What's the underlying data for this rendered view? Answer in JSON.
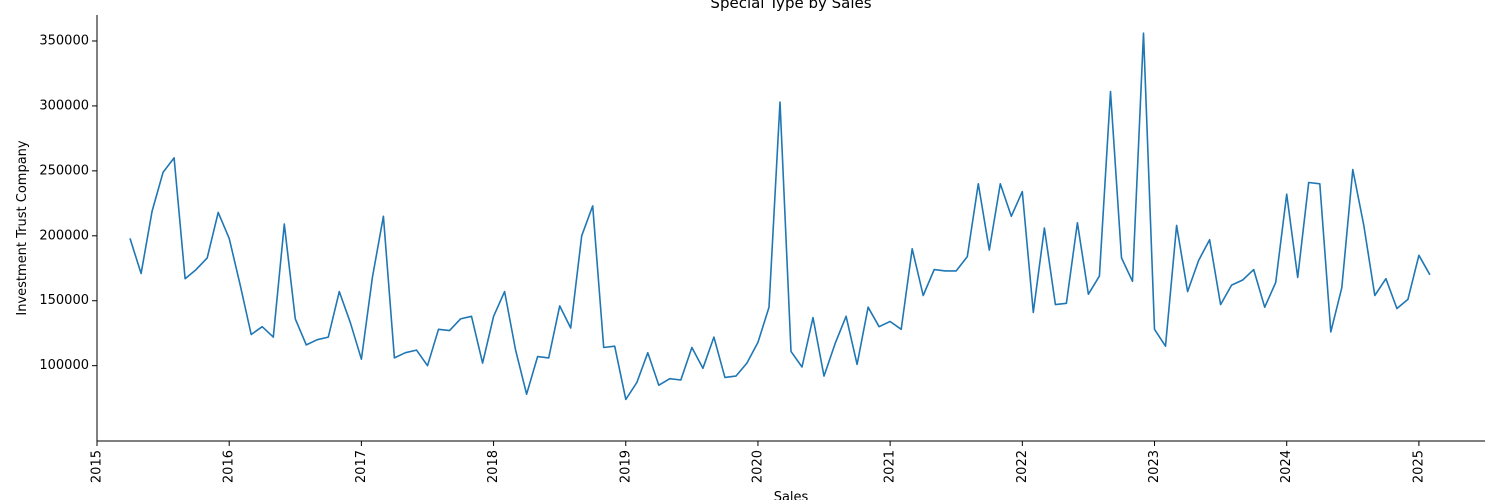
{
  "chart_data": {
    "type": "line",
    "title": "Special Type by Sales",
    "xlabel": "Sales",
    "ylabel": "Investment Trust Company",
    "x_ticks": [
      "2015",
      "2016",
      "2017",
      "2018",
      "2019",
      "2020",
      "2021",
      "2022",
      "2023",
      "2024",
      "2025"
    ],
    "y_ticks": [
      100000,
      150000,
      200000,
      250000,
      300000,
      350000
    ],
    "x_range": [
      "2015-01-01",
      "2025-07-01"
    ],
    "ylim": [
      42000,
      370000
    ],
    "grid": false,
    "legend": "none",
    "line_color": "#1f77b4",
    "series": [
      {
        "x": [
          "2015-04",
          "2015-05",
          "2015-06",
          "2015-07",
          "2015-08",
          "2015-09",
          "2015-10",
          "2015-11",
          "2015-12",
          "2016-01",
          "2016-02",
          "2016-03",
          "2016-04",
          "2016-05",
          "2016-06",
          "2016-07",
          "2016-08",
          "2016-09",
          "2016-10",
          "2016-11",
          "2016-12",
          "2017-01",
          "2017-02",
          "2017-03",
          "2017-04",
          "2017-05",
          "2017-06",
          "2017-07",
          "2017-08",
          "2017-09",
          "2017-10",
          "2017-11",
          "2017-12",
          "2018-01",
          "2018-02",
          "2018-03",
          "2018-04",
          "2018-05",
          "2018-06",
          "2018-07",
          "2018-08",
          "2018-09",
          "2018-10",
          "2018-11",
          "2018-12",
          "2019-01",
          "2019-02",
          "2019-03",
          "2019-04",
          "2019-05",
          "2019-06",
          "2019-07",
          "2019-08",
          "2019-09",
          "2019-10",
          "2019-11",
          "2019-12",
          "2020-01",
          "2020-02",
          "2020-03",
          "2020-04",
          "2020-05",
          "2020-06",
          "2020-07",
          "2020-08",
          "2020-09",
          "2020-10",
          "2020-11",
          "2020-12",
          "2021-01",
          "2021-02",
          "2021-03",
          "2021-04",
          "2021-05",
          "2021-06",
          "2021-07",
          "2021-08",
          "2021-09",
          "2021-10",
          "2021-11",
          "2021-12",
          "2022-01",
          "2022-02",
          "2022-03",
          "2022-04",
          "2022-05",
          "2022-06",
          "2022-07",
          "2022-08",
          "2022-09",
          "2022-10",
          "2022-11",
          "2022-12",
          "2023-01",
          "2023-02",
          "2023-03",
          "2023-04",
          "2023-05",
          "2023-06",
          "2023-07",
          "2023-08",
          "2023-09",
          "2023-10",
          "2023-11",
          "2023-12",
          "2024-01",
          "2024-02",
          "2024-03",
          "2024-04",
          "2024-05",
          "2024-06",
          "2024-07",
          "2024-08",
          "2024-09",
          "2024-10",
          "2024-11",
          "2024-12",
          "2025-01",
          "2025-02"
        ],
        "values": [
          198000,
          171000,
          219000,
          249000,
          260000,
          167000,
          174000,
          183000,
          218000,
          198000,
          162000,
          124000,
          130000,
          122000,
          209000,
          136000,
          116000,
          120000,
          122000,
          157000,
          133000,
          105000,
          168000,
          215000,
          106000,
          110000,
          112000,
          100000,
          128000,
          127000,
          136000,
          138000,
          102000,
          138000,
          157000,
          112000,
          78000,
          107000,
          106000,
          146000,
          129000,
          200000,
          223000,
          114000,
          115000,
          74000,
          87000,
          110000,
          85000,
          90000,
          89000,
          114000,
          98000,
          122000,
          91000,
          92000,
          102000,
          118000,
          145000,
          303000,
          111000,
          99000,
          137000,
          92000,
          117000,
          138000,
          101000,
          145000,
          130000,
          134000,
          128000,
          190000,
          154000,
          174000,
          173000,
          173000,
          184000,
          240000,
          189000,
          240000,
          215000,
          234000,
          141000,
          206000,
          147000,
          148000,
          210000,
          155000,
          169000,
          311000,
          183000,
          165000,
          356000,
          128000,
          115000,
          208000,
          157000,
          181000,
          197000,
          147000,
          162000,
          166000,
          174000,
          145000,
          164000,
          232000,
          168000,
          241000,
          240000,
          126000,
          160000,
          251000,
          208000,
          154000,
          167000,
          144000,
          151000,
          185000,
          170000
        ]
      }
    ]
  }
}
